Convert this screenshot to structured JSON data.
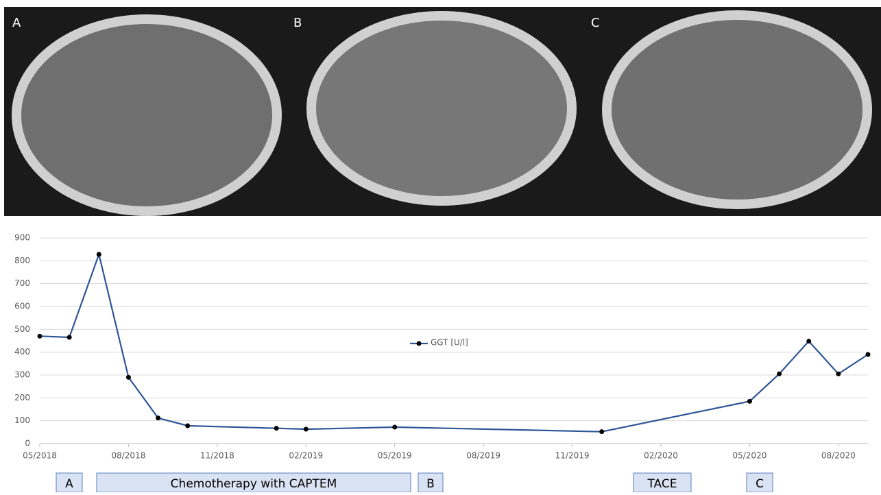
{
  "panels": [
    {
      "label": "A"
    },
    {
      "label": "B"
    },
    {
      "label": "C"
    }
  ],
  "chart_data": {
    "type": "line",
    "x": [
      "2018-05",
      "2018-06",
      "2018-07",
      "2018-08",
      "2018-09",
      "2018-10",
      "2019-01",
      "2019-02",
      "2019-05",
      "2019-12",
      "2020-05",
      "2020-06",
      "2020-07",
      "2020-08",
      "2020-09"
    ],
    "series": [
      {
        "name": "GGT [U/l]",
        "color": "#2e5597",
        "values": [
          470,
          465,
          828,
          290,
          112,
          78,
          67,
          63,
          72,
          52,
          185,
          305,
          448,
          305,
          390
        ]
      }
    ],
    "xlim": [
      "2018-05",
      "2020-09"
    ],
    "xticks": [
      {
        "value": "2018-05",
        "label": "05/2018"
      },
      {
        "value": "2018-08",
        "label": "08/2018"
      },
      {
        "value": "2018-11",
        "label": "11/2018"
      },
      {
        "value": "2019-02",
        "label": "02/2019"
      },
      {
        "value": "2019-05",
        "label": "05/2019"
      },
      {
        "value": "2019-08",
        "label": "08/2019"
      },
      {
        "value": "2019-11",
        "label": "11/2019"
      },
      {
        "value": "2020-02",
        "label": "02/2020"
      },
      {
        "value": "2020-05",
        "label": "05/2020"
      },
      {
        "value": "2020-08",
        "label": "08/2020"
      }
    ],
    "ylim": [
      0,
      900
    ],
    "yticks": [
      0,
      100,
      200,
      300,
      400,
      500,
      600,
      700,
      800,
      900
    ],
    "grid": true,
    "annotations": [
      "A",
      "Chemotherapy with CAPTEM",
      "B",
      "TACE",
      "C"
    ]
  }
}
